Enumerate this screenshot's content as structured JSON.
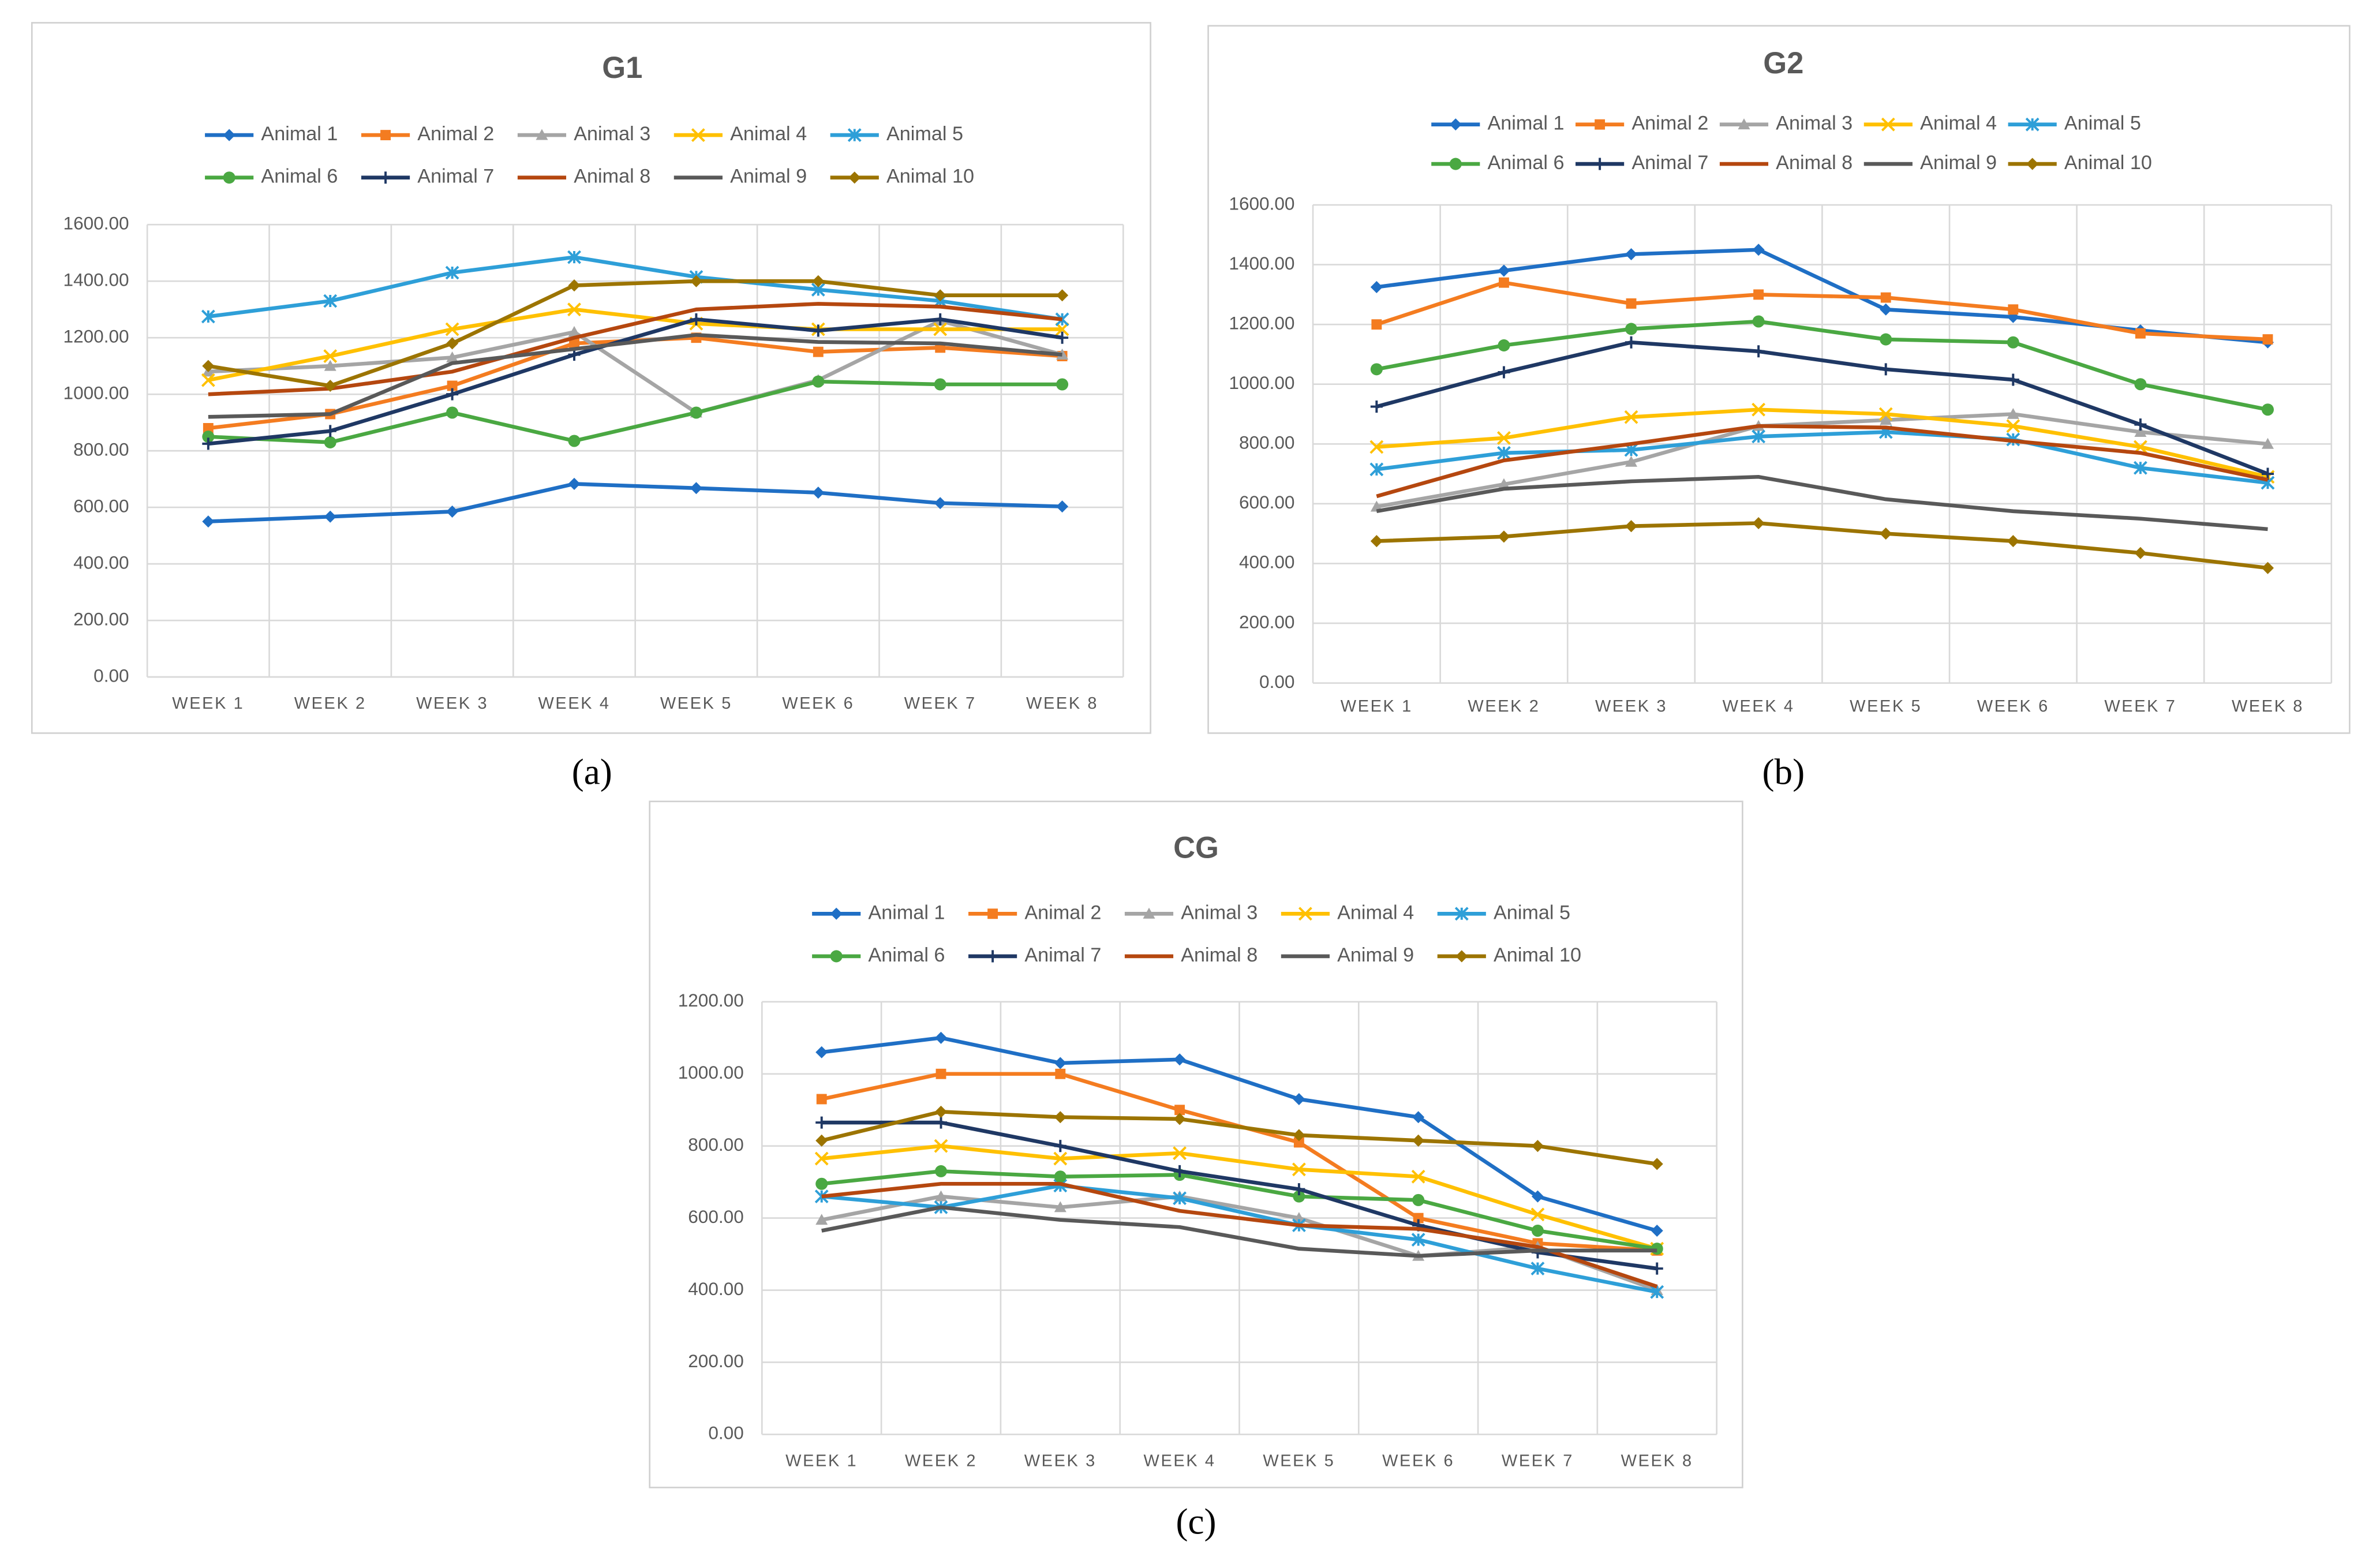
{
  "chart_data": [
    {
      "type": "line",
      "title": "G1",
      "panel_label": "(a)",
      "categories": [
        "WEEK 1",
        "WEEK 2",
        "WEEK 3",
        "WEEK 4",
        "WEEK 5",
        "WEEK 6",
        "WEEK 7",
        "WEEK 8"
      ],
      "ylim": [
        0,
        1600
      ],
      "yticks": [
        {
          "value": 0,
          "label": "0.00"
        },
        {
          "value": 200,
          "label": "200.00"
        },
        {
          "value": 400,
          "label": "400.00"
        },
        {
          "value": 600,
          "label": "600.00"
        },
        {
          "value": 800,
          "label": "800.00"
        },
        {
          "value": 1000,
          "label": "1000.00"
        },
        {
          "value": 1200,
          "label": "1200.00"
        },
        {
          "value": 1400,
          "label": "1400.00"
        },
        {
          "value": 1600,
          "label": "1600.00"
        }
      ],
      "grid": true,
      "legend": "top",
      "series": [
        {
          "name": "Animal 1",
          "color": "#1f6fc5",
          "marker": "diamond",
          "values": [
            550,
            567,
            585,
            683,
            668,
            652,
            615,
            603
          ]
        },
        {
          "name": "Animal 2",
          "color": "#f47c20",
          "marker": "square",
          "values": [
            880,
            930,
            1030,
            1180,
            1200,
            1150,
            1165,
            1135
          ]
        },
        {
          "name": "Animal 3",
          "color": "#a5a5a5",
          "marker": "triangle",
          "values": [
            1080,
            1100,
            1130,
            1220,
            935,
            1050,
            1260,
            1140
          ]
        },
        {
          "name": "Animal 4",
          "color": "#ffc000",
          "marker": "x",
          "values": [
            1050,
            1135,
            1230,
            1300,
            1250,
            1230,
            1230,
            1230
          ]
        },
        {
          "name": "Animal 5",
          "color": "#2e9fd8",
          "marker": "asterisk",
          "values": [
            1275,
            1330,
            1430,
            1485,
            1415,
            1370,
            1330,
            1265
          ]
        },
        {
          "name": "Animal 6",
          "color": "#4aa842",
          "marker": "circle",
          "values": [
            850,
            830,
            935,
            835,
            935,
            1045,
            1035,
            1035
          ]
        },
        {
          "name": "Animal 7",
          "color": "#1f3864",
          "marker": "plus",
          "values": [
            825,
            870,
            1000,
            1140,
            1265,
            1225,
            1265,
            1200
          ]
        },
        {
          "name": "Animal 8",
          "color": "#b5470f",
          "marker": "none",
          "values": [
            1000,
            1020,
            1080,
            1200,
            1300,
            1320,
            1310,
            1265
          ]
        },
        {
          "name": "Animal 9",
          "color": "#595959",
          "marker": "none",
          "values": [
            920,
            930,
            1110,
            1160,
            1210,
            1185,
            1180,
            1140
          ]
        },
        {
          "name": "Animal 10",
          "color": "#9c7400",
          "marker": "diamond",
          "values": [
            1100,
            1030,
            1180,
            1385,
            1400,
            1400,
            1350,
            1350
          ]
        }
      ]
    },
    {
      "type": "line",
      "title": "G2",
      "panel_label": "(b)",
      "categories": [
        "WEEK 1",
        "WEEK 2",
        "WEEK 3",
        "WEEK 4",
        "WEEK 5",
        "WEEK 6",
        "WEEK 7",
        "WEEK 8"
      ],
      "ylim": [
        0,
        1600
      ],
      "yticks": [
        {
          "value": 0,
          "label": "0.00"
        },
        {
          "value": 200,
          "label": "200.00"
        },
        {
          "value": 400,
          "label": "400.00"
        },
        {
          "value": 600,
          "label": "600.00"
        },
        {
          "value": 800,
          "label": "800.00"
        },
        {
          "value": 1000,
          "label": "1000.00"
        },
        {
          "value": 1200,
          "label": "1200.00"
        },
        {
          "value": 1400,
          "label": "1400.00"
        },
        {
          "value": 1600,
          "label": "1600.00"
        }
      ],
      "grid": true,
      "legend": "top",
      "series": [
        {
          "name": "Animal 1",
          "color": "#1f6fc5",
          "marker": "diamond",
          "values": [
            1325,
            1380,
            1435,
            1450,
            1250,
            1225,
            1180,
            1140
          ]
        },
        {
          "name": "Animal 2",
          "color": "#f47c20",
          "marker": "square",
          "values": [
            1200,
            1340,
            1270,
            1300,
            1290,
            1250,
            1170,
            1150
          ]
        },
        {
          "name": "Animal 3",
          "color": "#a5a5a5",
          "marker": "triangle",
          "values": [
            590,
            665,
            740,
            860,
            880,
            900,
            840,
            800
          ]
        },
        {
          "name": "Animal 4",
          "color": "#ffc000",
          "marker": "x",
          "values": [
            790,
            820,
            890,
            915,
            900,
            860,
            790,
            690
          ]
        },
        {
          "name": "Animal 5",
          "color": "#2e9fd8",
          "marker": "asterisk",
          "values": [
            715,
            770,
            780,
            825,
            840,
            815,
            720,
            670
          ]
        },
        {
          "name": "Animal 6",
          "color": "#4aa842",
          "marker": "circle",
          "values": [
            1050,
            1130,
            1185,
            1210,
            1150,
            1140,
            1000,
            915
          ]
        },
        {
          "name": "Animal 7",
          "color": "#1f3864",
          "marker": "plus",
          "values": [
            925,
            1040,
            1140,
            1110,
            1050,
            1015,
            865,
            700
          ]
        },
        {
          "name": "Animal 8",
          "color": "#b5470f",
          "marker": "none",
          "values": [
            625,
            745,
            800,
            860,
            855,
            810,
            770,
            680
          ]
        },
        {
          "name": "Animal 9",
          "color": "#595959",
          "marker": "none",
          "values": [
            575,
            650,
            675,
            690,
            615,
            575,
            550,
            515
          ]
        },
        {
          "name": "Animal 10",
          "color": "#9c7400",
          "marker": "diamond",
          "values": [
            475,
            490,
            525,
            535,
            500,
            475,
            435,
            385
          ]
        }
      ]
    },
    {
      "type": "line",
      "title": "CG",
      "panel_label": "(c)",
      "categories": [
        "WEEK 1",
        "WEEK 2",
        "WEEK 3",
        "WEEK 4",
        "WEEK 5",
        "WEEK 6",
        "WEEK 7",
        "WEEK 8"
      ],
      "ylim": [
        0,
        1200
      ],
      "yticks": [
        {
          "value": 0,
          "label": "0.00"
        },
        {
          "value": 200,
          "label": "200.00"
        },
        {
          "value": 400,
          "label": "400.00"
        },
        {
          "value": 600,
          "label": "600.00"
        },
        {
          "value": 800,
          "label": "800.00"
        },
        {
          "value": 1000,
          "label": "1000.00"
        },
        {
          "value": 1200,
          "label": "1200.00"
        }
      ],
      "grid": true,
      "legend": "top",
      "series": [
        {
          "name": "Animal 1",
          "color": "#1f6fc5",
          "marker": "diamond",
          "values": [
            1060,
            1100,
            1030,
            1040,
            930,
            880,
            660,
            565
          ]
        },
        {
          "name": "Animal 2",
          "color": "#f47c20",
          "marker": "square",
          "values": [
            930,
            1000,
            1000,
            900,
            810,
            600,
            530,
            510
          ]
        },
        {
          "name": "Animal 3",
          "color": "#a5a5a5",
          "marker": "triangle",
          "values": [
            595,
            660,
            630,
            660,
            600,
            495,
            520,
            400
          ]
        },
        {
          "name": "Animal 4",
          "color": "#ffc000",
          "marker": "x",
          "values": [
            765,
            800,
            765,
            780,
            735,
            715,
            610,
            515
          ]
        },
        {
          "name": "Animal 5",
          "color": "#2e9fd8",
          "marker": "asterisk",
          "values": [
            660,
            630,
            690,
            655,
            580,
            540,
            460,
            395
          ]
        },
        {
          "name": "Animal 6",
          "color": "#4aa842",
          "marker": "circle",
          "values": [
            695,
            730,
            715,
            720,
            660,
            650,
            565,
            515
          ]
        },
        {
          "name": "Animal 7",
          "color": "#1f3864",
          "marker": "plus",
          "values": [
            865,
            865,
            800,
            730,
            680,
            580,
            505,
            460
          ]
        },
        {
          "name": "Animal 8",
          "color": "#b5470f",
          "marker": "none",
          "values": [
            660,
            695,
            695,
            620,
            580,
            570,
            520,
            410
          ]
        },
        {
          "name": "Animal 9",
          "color": "#595959",
          "marker": "none",
          "values": [
            565,
            630,
            595,
            575,
            515,
            495,
            510,
            510
          ]
        },
        {
          "name": "Animal 10",
          "color": "#9c7400",
          "marker": "diamond",
          "values": [
            815,
            895,
            880,
            875,
            830,
            815,
            800,
            750
          ]
        }
      ]
    }
  ]
}
